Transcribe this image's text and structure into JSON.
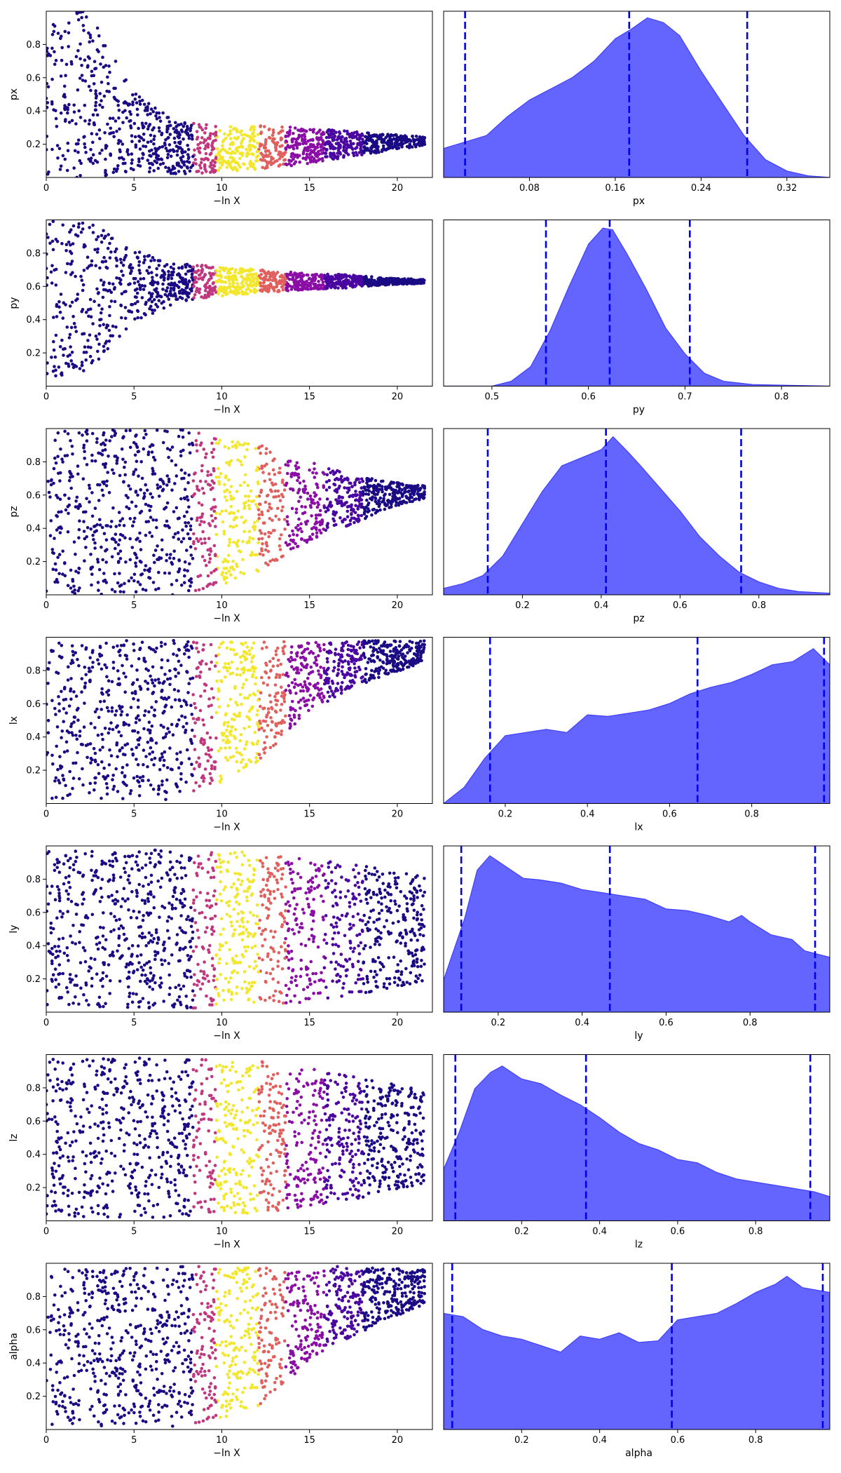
{
  "colors": {
    "kde_fill": "#6464ff",
    "kde_line": "#4040ff",
    "quantile_line": "#0000ee",
    "trace_low": "#1a0b84",
    "trace_mid": "#c1377e",
    "trace_high": "#f2e72e"
  },
  "chart_data": [
    {
      "type": "scatter",
      "panel": "trace",
      "param": "px",
      "xlabel": "−ln X",
      "ylabel": "px",
      "xlim": [
        0,
        22
      ],
      "ylim": [
        0,
        1
      ],
      "xticks": [
        "0",
        "5",
        "10",
        "15",
        "20"
      ],
      "yticks": [
        "0.2",
        "0.4",
        "0.6",
        "0.8"
      ],
      "envelope": {
        "center": [
          0.5,
          0.5,
          0.27,
          0.18,
          0.17,
          0.18,
          0.19,
          0.2,
          0.21,
          0.22
        ],
        "halfwidth": [
          0.5,
          0.5,
          0.25,
          0.16,
          0.14,
          0.13,
          0.11,
          0.08,
          0.05,
          0.02
        ]
      }
    },
    {
      "type": "area",
      "panel": "posterior",
      "param": "px",
      "xlabel": "px",
      "xlim": [
        -0.0,
        0.36
      ],
      "xticks": [
        "0.08",
        "0.16",
        "0.24",
        "0.32"
      ],
      "xtick_values": [
        0.08,
        0.16,
        0.24,
        0.32
      ],
      "quantiles": [
        0.02,
        0.173,
        0.283
      ],
      "density": [
        [
          -0.0,
          0.18
        ],
        [
          0.02,
          0.22
        ],
        [
          0.04,
          0.26
        ],
        [
          0.06,
          0.38
        ],
        [
          0.08,
          0.48
        ],
        [
          0.1,
          0.55
        ],
        [
          0.12,
          0.62
        ],
        [
          0.14,
          0.72
        ],
        [
          0.16,
          0.86
        ],
        [
          0.175,
          0.92
        ],
        [
          0.19,
          0.99
        ],
        [
          0.205,
          0.96
        ],
        [
          0.22,
          0.88
        ],
        [
          0.24,
          0.66
        ],
        [
          0.26,
          0.46
        ],
        [
          0.28,
          0.26
        ],
        [
          0.3,
          0.11
        ],
        [
          0.32,
          0.04
        ],
        [
          0.34,
          0.01
        ],
        [
          0.36,
          0.0
        ]
      ]
    },
    {
      "type": "scatter",
      "panel": "trace",
      "param": "py",
      "xlabel": "−ln X",
      "ylabel": "py",
      "xlim": [
        0,
        22
      ],
      "ylim": [
        0,
        1
      ],
      "xticks": [
        "0",
        "5",
        "10",
        "15",
        "20"
      ],
      "yticks": [
        "0.2",
        "0.4",
        "0.6",
        "0.8"
      ],
      "envelope": {
        "center": [
          0.5,
          0.55,
          0.6,
          0.62,
          0.63,
          0.63,
          0.63,
          0.63,
          0.63,
          0.63
        ],
        "halfwidth": [
          0.5,
          0.45,
          0.22,
          0.12,
          0.09,
          0.07,
          0.05,
          0.04,
          0.02,
          0.01
        ]
      }
    },
    {
      "type": "area",
      "panel": "posterior",
      "param": "py",
      "xlabel": "py",
      "xlim": [
        0.45,
        0.85
      ],
      "xticks": [
        "0.5",
        "0.6",
        "0.7",
        "0.8"
      ],
      "xtick_values": [
        0.5,
        0.6,
        0.7,
        0.8
      ],
      "quantiles": [
        0.556,
        0.622,
        0.705
      ],
      "density": [
        [
          0.45,
          0.0
        ],
        [
          0.5,
          0.0
        ],
        [
          0.52,
          0.03
        ],
        [
          0.54,
          0.12
        ],
        [
          0.56,
          0.34
        ],
        [
          0.58,
          0.62
        ],
        [
          0.6,
          0.88
        ],
        [
          0.615,
          0.98
        ],
        [
          0.625,
          0.97
        ],
        [
          0.64,
          0.82
        ],
        [
          0.66,
          0.6
        ],
        [
          0.68,
          0.36
        ],
        [
          0.7,
          0.2
        ],
        [
          0.72,
          0.08
        ],
        [
          0.74,
          0.03
        ],
        [
          0.77,
          0.01
        ],
        [
          0.85,
          0.0
        ]
      ]
    },
    {
      "type": "scatter",
      "panel": "trace",
      "param": "pz",
      "xlabel": "−ln X",
      "ylabel": "pz",
      "xlim": [
        0,
        22
      ],
      "ylim": [
        0,
        1
      ],
      "xticks": [
        "0",
        "5",
        "10",
        "15",
        "20"
      ],
      "yticks": [
        "0.2",
        "0.4",
        "0.6",
        "0.8"
      ],
      "envelope": {
        "center": [
          0.5,
          0.5,
          0.5,
          0.5,
          0.5,
          0.52,
          0.55,
          0.57,
          0.6,
          0.62
        ],
        "halfwidth": [
          0.5,
          0.5,
          0.5,
          0.5,
          0.45,
          0.38,
          0.26,
          0.16,
          0.08,
          0.03
        ]
      }
    },
    {
      "type": "area",
      "panel": "posterior",
      "param": "pz",
      "xlabel": "pz",
      "xlim": [
        0.0,
        0.98
      ],
      "xticks": [
        "0.2",
        "0.4",
        "0.6",
        "0.8"
      ],
      "xtick_values": [
        0.2,
        0.4,
        0.6,
        0.8
      ],
      "quantiles": [
        0.112,
        0.412,
        0.755
      ],
      "density": [
        [
          0.0,
          0.04
        ],
        [
          0.05,
          0.07
        ],
        [
          0.1,
          0.12
        ],
        [
          0.15,
          0.24
        ],
        [
          0.2,
          0.44
        ],
        [
          0.25,
          0.64
        ],
        [
          0.3,
          0.8
        ],
        [
          0.35,
          0.85
        ],
        [
          0.4,
          0.9
        ],
        [
          0.43,
          0.98
        ],
        [
          0.47,
          0.88
        ],
        [
          0.5,
          0.8
        ],
        [
          0.55,
          0.66
        ],
        [
          0.6,
          0.52
        ],
        [
          0.65,
          0.36
        ],
        [
          0.7,
          0.24
        ],
        [
          0.75,
          0.14
        ],
        [
          0.8,
          0.08
        ],
        [
          0.85,
          0.04
        ],
        [
          0.9,
          0.02
        ],
        [
          0.98,
          0.01
        ]
      ]
    },
    {
      "type": "scatter",
      "panel": "trace",
      "param": "lx",
      "xlabel": "−ln X",
      "ylabel": "lx",
      "xlim": [
        0,
        22
      ],
      "ylim": [
        0,
        1
      ],
      "xticks": [
        "0",
        "5",
        "10",
        "15",
        "20"
      ],
      "yticks": [
        "0.2",
        "0.4",
        "0.6",
        "0.8"
      ],
      "envelope": {
        "center": [
          0.5,
          0.5,
          0.5,
          0.5,
          0.55,
          0.62,
          0.75,
          0.83,
          0.88,
          0.92
        ],
        "halfwidth": [
          0.48,
          0.48,
          0.48,
          0.48,
          0.44,
          0.36,
          0.22,
          0.15,
          0.1,
          0.06
        ]
      }
    },
    {
      "type": "area",
      "panel": "posterior",
      "param": "lx",
      "xlabel": "lx",
      "xlim": [
        0.05,
        0.99
      ],
      "xticks": [
        "0.2",
        "0.4",
        "0.6",
        "0.8"
      ],
      "xtick_values": [
        0.2,
        0.4,
        0.6,
        0.8
      ],
      "quantiles": [
        0.163,
        0.668,
        0.976
      ],
      "density": [
        [
          0.05,
          0.0
        ],
        [
          0.1,
          0.1
        ],
        [
          0.15,
          0.28
        ],
        [
          0.2,
          0.42
        ],
        [
          0.25,
          0.44
        ],
        [
          0.3,
          0.46
        ],
        [
          0.35,
          0.44
        ],
        [
          0.4,
          0.55
        ],
        [
          0.45,
          0.54
        ],
        [
          0.5,
          0.56
        ],
        [
          0.55,
          0.58
        ],
        [
          0.6,
          0.62
        ],
        [
          0.65,
          0.68
        ],
        [
          0.7,
          0.72
        ],
        [
          0.75,
          0.75
        ],
        [
          0.8,
          0.8
        ],
        [
          0.85,
          0.86
        ],
        [
          0.9,
          0.88
        ],
        [
          0.95,
          0.96
        ],
        [
          0.99,
          0.86
        ]
      ]
    },
    {
      "type": "scatter",
      "panel": "trace",
      "param": "ly",
      "xlabel": "−ln X",
      "ylabel": "ly",
      "xlim": [
        0,
        22
      ],
      "ylim": [
        0,
        1
      ],
      "xticks": [
        "0",
        "5",
        "10",
        "15",
        "20"
      ],
      "yticks": [
        "0.2",
        "0.4",
        "0.6",
        "0.8"
      ],
      "envelope": {
        "center": [
          0.5,
          0.5,
          0.5,
          0.5,
          0.5,
          0.5,
          0.5,
          0.5,
          0.5,
          0.5
        ],
        "halfwidth": [
          0.48,
          0.48,
          0.48,
          0.48,
          0.47,
          0.46,
          0.44,
          0.4,
          0.36,
          0.3
        ]
      }
    },
    {
      "type": "area",
      "panel": "posterior",
      "param": "ly",
      "xlabel": "ly",
      "xlim": [
        0.07,
        0.99
      ],
      "xticks": [
        "0.2",
        "0.4",
        "0.6",
        "0.8"
      ],
      "xtick_values": [
        0.2,
        0.4,
        0.6,
        0.8
      ],
      "quantiles": [
        0.112,
        0.466,
        0.955
      ],
      "density": [
        [
          0.07,
          0.2
        ],
        [
          0.12,
          0.58
        ],
        [
          0.15,
          0.88
        ],
        [
          0.18,
          0.97
        ],
        [
          0.22,
          0.9
        ],
        [
          0.26,
          0.83
        ],
        [
          0.3,
          0.82
        ],
        [
          0.35,
          0.8
        ],
        [
          0.4,
          0.76
        ],
        [
          0.45,
          0.74
        ],
        [
          0.5,
          0.72
        ],
        [
          0.55,
          0.7
        ],
        [
          0.6,
          0.64
        ],
        [
          0.65,
          0.63
        ],
        [
          0.7,
          0.6
        ],
        [
          0.75,
          0.56
        ],
        [
          0.78,
          0.6
        ],
        [
          0.8,
          0.56
        ],
        [
          0.85,
          0.48
        ],
        [
          0.9,
          0.45
        ],
        [
          0.93,
          0.38
        ],
        [
          0.99,
          0.34
        ]
      ]
    },
    {
      "type": "scatter",
      "panel": "trace",
      "param": "lz",
      "xlabel": "−ln X",
      "ylabel": "lz",
      "xlim": [
        0,
        22
      ],
      "ylim": [
        0,
        1
      ],
      "xticks": [
        "0",
        "5",
        "10",
        "15",
        "20"
      ],
      "yticks": [
        "0.2",
        "0.4",
        "0.6",
        "0.8"
      ],
      "envelope": {
        "center": [
          0.5,
          0.5,
          0.5,
          0.5,
          0.5,
          0.5,
          0.5,
          0.5,
          0.5,
          0.5
        ],
        "halfwidth": [
          0.48,
          0.48,
          0.48,
          0.48,
          0.47,
          0.46,
          0.42,
          0.38,
          0.33,
          0.28
        ]
      }
    },
    {
      "type": "area",
      "panel": "posterior",
      "param": "lz",
      "xlabel": "lz",
      "xlim": [
        0.0,
        0.99
      ],
      "xticks": [
        "0.2",
        "0.4",
        "0.6",
        "0.8"
      ],
      "xtick_values": [
        0.2,
        0.4,
        0.6,
        0.8
      ],
      "quantiles": [
        0.03,
        0.365,
        0.94
      ],
      "density": [
        [
          0.0,
          0.32
        ],
        [
          0.04,
          0.55
        ],
        [
          0.08,
          0.82
        ],
        [
          0.12,
          0.92
        ],
        [
          0.15,
          0.96
        ],
        [
          0.2,
          0.88
        ],
        [
          0.25,
          0.85
        ],
        [
          0.3,
          0.78
        ],
        [
          0.35,
          0.72
        ],
        [
          0.4,
          0.64
        ],
        [
          0.45,
          0.55
        ],
        [
          0.5,
          0.48
        ],
        [
          0.55,
          0.44
        ],
        [
          0.6,
          0.38
        ],
        [
          0.65,
          0.36
        ],
        [
          0.7,
          0.3
        ],
        [
          0.75,
          0.26
        ],
        [
          0.8,
          0.24
        ],
        [
          0.85,
          0.22
        ],
        [
          0.9,
          0.2
        ],
        [
          0.95,
          0.18
        ],
        [
          0.99,
          0.15
        ]
      ]
    },
    {
      "type": "scatter",
      "panel": "trace",
      "param": "alpha",
      "xlabel": "−ln X",
      "ylabel": "alpha",
      "xlim": [
        0,
        22
      ],
      "ylim": [
        0,
        1
      ],
      "xticks": [
        "0",
        "5",
        "10",
        "15",
        "20"
      ],
      "yticks": [
        "0.2",
        "0.4",
        "0.6",
        "0.8"
      ],
      "envelope": {
        "center": [
          0.5,
          0.5,
          0.5,
          0.5,
          0.52,
          0.56,
          0.68,
          0.76,
          0.82,
          0.86
        ],
        "halfwidth": [
          0.48,
          0.48,
          0.48,
          0.48,
          0.46,
          0.42,
          0.3,
          0.22,
          0.15,
          0.1
        ]
      }
    },
    {
      "type": "area",
      "panel": "posterior",
      "param": "alpha",
      "xlabel": "alpha",
      "xlim": [
        0.0,
        0.99
      ],
      "xticks": [
        "0.2",
        "0.4",
        "0.6",
        "0.8"
      ],
      "xtick_values": [
        0.2,
        0.4,
        0.6,
        0.8
      ],
      "quantiles": [
        0.022,
        0.585,
        0.972
      ],
      "density": [
        [
          0.0,
          0.72
        ],
        [
          0.05,
          0.7
        ],
        [
          0.1,
          0.62
        ],
        [
          0.15,
          0.58
        ],
        [
          0.2,
          0.56
        ],
        [
          0.25,
          0.52
        ],
        [
          0.3,
          0.48
        ],
        [
          0.35,
          0.58
        ],
        [
          0.4,
          0.56
        ],
        [
          0.45,
          0.6
        ],
        [
          0.5,
          0.54
        ],
        [
          0.55,
          0.55
        ],
        [
          0.6,
          0.68
        ],
        [
          0.65,
          0.7
        ],
        [
          0.7,
          0.72
        ],
        [
          0.75,
          0.78
        ],
        [
          0.8,
          0.85
        ],
        [
          0.85,
          0.9
        ],
        [
          0.88,
          0.95
        ],
        [
          0.92,
          0.88
        ],
        [
          0.99,
          0.85
        ]
      ]
    }
  ]
}
